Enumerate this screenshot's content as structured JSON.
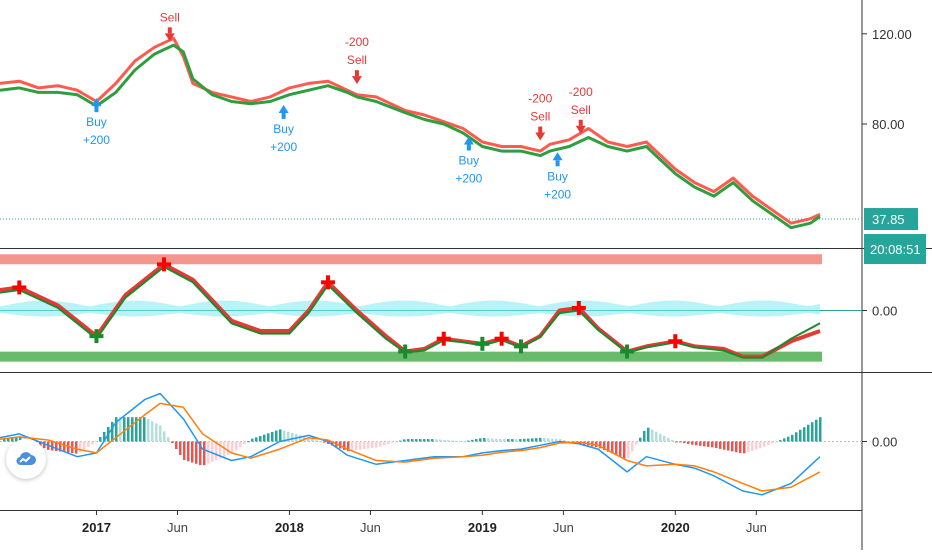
{
  "chart_data": [
    {
      "type": "line",
      "panel": "price",
      "y_axis_ticks": [
        "120.00",
        "80.00"
      ],
      "ylim": [
        25,
        135
      ],
      "last_price": "37.85",
      "countdown": "20:08:51",
      "time_ticks": [
        "2017",
        "Jun",
        "2018",
        "Jun",
        "2019",
        "Jun",
        "2020",
        "Jun"
      ],
      "x_range": [
        2016.5,
        2020.75
      ],
      "series": [
        {
          "color": "#ff5a4f",
          "x": [
            2016.5,
            2016.6,
            2016.7,
            2016.8,
            2016.9,
            2017.0,
            2017.1,
            2017.2,
            2017.3,
            2017.4,
            2017.45,
            2017.5,
            2017.6,
            2017.7,
            2017.8,
            2017.9,
            2018.0,
            2018.1,
            2018.2,
            2018.3,
            2018.35,
            2018.45,
            2018.6,
            2018.7,
            2018.8,
            2018.9,
            2019.0,
            2019.1,
            2019.2,
            2019.3,
            2019.35,
            2019.45,
            2019.55,
            2019.65,
            2019.75,
            2019.85,
            2019.9,
            2020.0,
            2020.1,
            2020.2,
            2020.3,
            2020.4,
            2020.5,
            2020.6,
            2020.7,
            2020.75
          ],
          "y": [
            98,
            99,
            96,
            97,
            95,
            90,
            98,
            108,
            114,
            118,
            110,
            98,
            94,
            92,
            90,
            92,
            96,
            98,
            99,
            95,
            93,
            92,
            86,
            84,
            81,
            78,
            72,
            70,
            70,
            68,
            71,
            73,
            78,
            72,
            70,
            72,
            68,
            60,
            54,
            50,
            56,
            48,
            42,
            36,
            38,
            40
          ]
        },
        {
          "color": "#2e9e3e",
          "x": [
            2016.5,
            2016.6,
            2016.7,
            2016.8,
            2016.9,
            2017.0,
            2017.1,
            2017.2,
            2017.3,
            2017.4,
            2017.45,
            2017.5,
            2017.6,
            2017.7,
            2017.8,
            2017.9,
            2018.0,
            2018.1,
            2018.2,
            2018.3,
            2018.35,
            2018.45,
            2018.6,
            2018.7,
            2018.8,
            2018.9,
            2019.0,
            2019.1,
            2019.2,
            2019.3,
            2019.35,
            2019.45,
            2019.55,
            2019.65,
            2019.75,
            2019.85,
            2019.9,
            2020.0,
            2020.1,
            2020.2,
            2020.3,
            2020.4,
            2020.5,
            2020.6,
            2020.7,
            2020.75
          ],
          "y": [
            95,
            96,
            94,
            94,
            93,
            88,
            94,
            104,
            111,
            115,
            112,
            100,
            93,
            90,
            89,
            90,
            93,
            95,
            97,
            94,
            92,
            90,
            85,
            82,
            80,
            76,
            70,
            68,
            68,
            66,
            68,
            70,
            74,
            70,
            68,
            70,
            66,
            58,
            52,
            48,
            54,
            46,
            40,
            34,
            36,
            39
          ]
        }
      ],
      "annotations": [
        {
          "label": [
            "Buy",
            "+200"
          ],
          "x": 2017.0,
          "color": "#2196f3"
        },
        {
          "label": [
            "Sell"
          ],
          "x": 2017.38,
          "color": "#e53935"
        },
        {
          "label": [
            "Buy",
            "+200"
          ],
          "x": 2017.97,
          "color": "#2196f3"
        },
        {
          "label": [
            "-200",
            "Sell"
          ],
          "x": 2018.35,
          "color": "#e53935"
        },
        {
          "label": [
            "Buy",
            "+200"
          ],
          "x": 2018.93,
          "color": "#2196f3"
        },
        {
          "label": [
            "-200",
            "Sell"
          ],
          "x": 2019.3,
          "color": "#e53935"
        },
        {
          "label": [
            "Buy",
            "+200"
          ],
          "x": 2019.39,
          "color": "#2196f3"
        },
        {
          "label": [
            "-200",
            "Sell"
          ],
          "x": 2019.51,
          "color": "#e53935"
        }
      ]
    },
    {
      "type": "line",
      "panel": "oscillator",
      "y_axis_ticks": [
        "0.00"
      ],
      "ylim": [
        -1.2,
        1.2
      ],
      "upper_band": 1.0,
      "lower_band": -0.9,
      "series": [
        {
          "color": "#e53935",
          "x": [
            2016.5,
            2016.6,
            2016.8,
            2017.0,
            2017.15,
            2017.35,
            2017.5,
            2017.7,
            2017.85,
            2018.0,
            2018.1,
            2018.2,
            2018.35,
            2018.5,
            2018.6,
            2018.7,
            2018.8,
            2018.9,
            2019.0,
            2019.1,
            2019.2,
            2019.3,
            2019.4,
            2019.5,
            2019.6,
            2019.75,
            2019.85,
            2020.0,
            2020.1,
            2020.25,
            2020.35,
            2020.45,
            2020.6,
            2020.75
          ],
          "y": [
            0.4,
            0.45,
            0.1,
            -0.5,
            0.3,
            0.9,
            0.6,
            -0.2,
            -0.4,
            -0.4,
            0.0,
            0.55,
            0.0,
            -0.5,
            -0.8,
            -0.75,
            -0.55,
            -0.6,
            -0.65,
            -0.55,
            -0.7,
            -0.5,
            0.0,
            0.05,
            -0.35,
            -0.8,
            -0.7,
            -0.6,
            -0.7,
            -0.75,
            -0.9,
            -0.9,
            -0.6,
            -0.4
          ]
        },
        {
          "color": "#1b8a2e",
          "x": [
            2016.5,
            2016.6,
            2016.8,
            2017.0,
            2017.15,
            2017.35,
            2017.5,
            2017.7,
            2017.85,
            2018.0,
            2018.1,
            2018.2,
            2018.35,
            2018.5,
            2018.6,
            2018.7,
            2018.8,
            2018.9,
            2019.0,
            2019.1,
            2019.2,
            2019.3,
            2019.4,
            2019.5,
            2019.6,
            2019.75,
            2019.85,
            2020.0,
            2020.1,
            2020.25,
            2020.35,
            2020.45,
            2020.6,
            2020.75
          ],
          "y": [
            0.35,
            0.4,
            0.05,
            -0.55,
            0.25,
            0.85,
            0.55,
            -0.25,
            -0.45,
            -0.45,
            -0.05,
            0.5,
            -0.05,
            -0.55,
            -0.82,
            -0.78,
            -0.58,
            -0.62,
            -0.68,
            -0.58,
            -0.72,
            -0.52,
            -0.05,
            0.0,
            -0.38,
            -0.82,
            -0.72,
            -0.62,
            -0.72,
            -0.78,
            -0.92,
            -0.92,
            -0.55,
            -0.25
          ]
        }
      ]
    },
    {
      "type": "line",
      "panel": "macd",
      "y_axis_ticks": [
        "0.00"
      ],
      "ylim": [
        -9,
        9
      ],
      "series": [
        {
          "color": "#2196f3",
          "x": [
            2016.5,
            2016.6,
            2016.75,
            2016.9,
            2017.0,
            2017.1,
            2017.25,
            2017.33,
            2017.45,
            2017.55,
            2017.7,
            2017.8,
            2017.95,
            2018.1,
            2018.2,
            2018.3,
            2018.45,
            2018.6,
            2018.75,
            2018.9,
            2019.0,
            2019.1,
            2019.2,
            2019.3,
            2019.4,
            2019.5,
            2019.6,
            2019.75,
            2019.85,
            2020.0,
            2020.1,
            2020.2,
            2020.35,
            2020.45,
            2020.6,
            2020.75
          ],
          "y": [
            0.5,
            1.0,
            -0.5,
            -2.0,
            -1.5,
            2.5,
            5.5,
            6.3,
            3.0,
            -1.0,
            -2.5,
            -2.0,
            0.0,
            0.8,
            0.0,
            -1.8,
            -3.0,
            -2.5,
            -2.0,
            -2.0,
            -1.5,
            -1.2,
            -1.0,
            -0.5,
            0.0,
            -0.3,
            -1.0,
            -4.0,
            -2.0,
            -3.0,
            -3.5,
            -4.5,
            -6.5,
            -7.0,
            -5.5,
            -2.0
          ]
        },
        {
          "color": "#ff7f0e",
          "x": [
            2016.5,
            2016.6,
            2016.75,
            2016.9,
            2017.0,
            2017.1,
            2017.25,
            2017.33,
            2017.45,
            2017.55,
            2017.7,
            2017.8,
            2017.95,
            2018.1,
            2018.2,
            2018.3,
            2018.45,
            2018.6,
            2018.75,
            2018.9,
            2019.0,
            2019.1,
            2019.2,
            2019.3,
            2019.4,
            2019.5,
            2019.6,
            2019.75,
            2019.85,
            2020.0,
            2020.1,
            2020.2,
            2020.35,
            2020.45,
            2020.6,
            2020.75
          ],
          "y": [
            0.3,
            0.6,
            0.2,
            -1.0,
            -1.5,
            0.5,
            3.5,
            5.0,
            4.5,
            1.0,
            -1.5,
            -2.2,
            -1.0,
            0.5,
            0.2,
            -1.0,
            -2.5,
            -2.7,
            -2.2,
            -2.0,
            -1.8,
            -1.4,
            -1.2,
            -0.8,
            -0.2,
            -0.1,
            -0.5,
            -2.5,
            -3.2,
            -3.0,
            -3.2,
            -4.0,
            -5.5,
            -6.5,
            -6.0,
            -4.0
          ]
        }
      ]
    }
  ],
  "colors": {
    "up": "#26a69a",
    "down": "#ef5350",
    "buy": "#2196f3",
    "sell": "#e53935",
    "cross_red": "#ff0000",
    "cross_green": "#1b8a2e",
    "cloud": "#7fe8f0"
  },
  "ui": {
    "logo_icon": "tradingview-cloud-icon"
  }
}
